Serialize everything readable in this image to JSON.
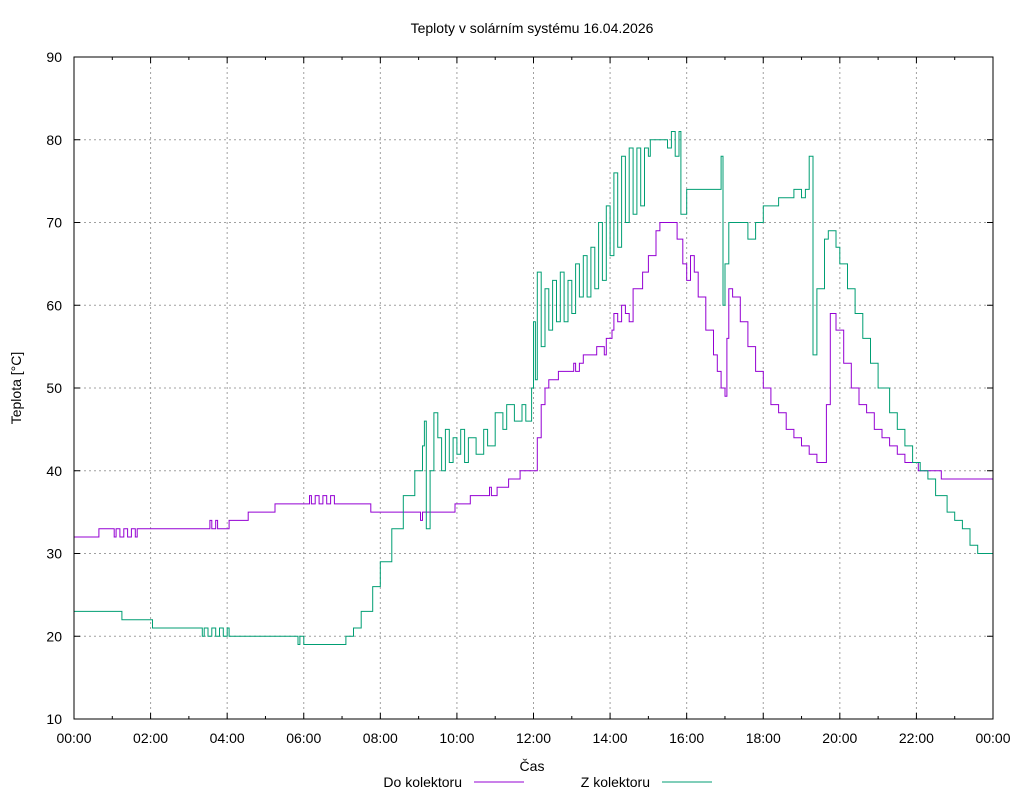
{
  "chart_data": {
    "type": "line",
    "title": "Teploty v solárním systému 16.04.2026",
    "xlabel": "Čas",
    "ylabel": "Teplota [°C]",
    "xlim": [
      0,
      24
    ],
    "ylim": [
      10,
      90
    ],
    "grid": true,
    "legend_position": "bottom",
    "x_tick_values": [
      0,
      2,
      4,
      6,
      8,
      10,
      12,
      14,
      16,
      18,
      20,
      22,
      24
    ],
    "x_tick_labels": [
      "00:00",
      "02:00",
      "04:00",
      "06:00",
      "08:00",
      "10:00",
      "12:00",
      "14:00",
      "16:00",
      "18:00",
      "20:00",
      "22:00",
      "00:00"
    ],
    "y_ticks": [
      10,
      20,
      30,
      40,
      50,
      60,
      70,
      80,
      90
    ],
    "series": [
      {
        "name": "Do kolektoru",
        "color": "#9400d3",
        "points": [
          [
            0,
            32
          ],
          [
            0.6,
            32
          ],
          [
            0.65,
            33
          ],
          [
            1.0,
            33
          ],
          [
            1.05,
            32
          ],
          [
            1.1,
            33
          ],
          [
            1.2,
            32
          ],
          [
            1.3,
            33
          ],
          [
            1.4,
            32
          ],
          [
            1.5,
            33
          ],
          [
            1.6,
            32
          ],
          [
            1.65,
            33
          ],
          [
            3.5,
            33
          ],
          [
            3.55,
            34
          ],
          [
            3.6,
            33
          ],
          [
            3.7,
            34
          ],
          [
            3.75,
            33
          ],
          [
            4.0,
            33
          ],
          [
            4.05,
            34
          ],
          [
            4.5,
            34
          ],
          [
            4.55,
            35
          ],
          [
            5.2,
            35
          ],
          [
            5.25,
            36
          ],
          [
            6.1,
            36
          ],
          [
            6.15,
            37
          ],
          [
            6.2,
            36
          ],
          [
            6.3,
            37
          ],
          [
            6.4,
            36
          ],
          [
            6.5,
            37
          ],
          [
            6.6,
            36
          ],
          [
            6.7,
            37
          ],
          [
            6.8,
            36
          ],
          [
            7.7,
            36
          ],
          [
            7.75,
            35
          ],
          [
            9.0,
            35
          ],
          [
            9.05,
            34
          ],
          [
            9.1,
            35
          ],
          [
            9.9,
            35
          ],
          [
            9.95,
            36
          ],
          [
            10.3,
            36
          ],
          [
            10.35,
            37
          ],
          [
            10.8,
            37
          ],
          [
            10.85,
            38
          ],
          [
            10.9,
            37
          ],
          [
            11.0,
            37
          ],
          [
            11.05,
            38
          ],
          [
            11.3,
            38
          ],
          [
            11.35,
            39
          ],
          [
            11.6,
            39
          ],
          [
            11.65,
            40
          ],
          [
            12.0,
            40
          ],
          [
            12.1,
            44
          ],
          [
            12.2,
            48
          ],
          [
            12.3,
            50
          ],
          [
            12.4,
            51
          ],
          [
            12.6,
            51
          ],
          [
            12.65,
            52
          ],
          [
            13.0,
            52
          ],
          [
            13.05,
            53
          ],
          [
            13.1,
            52
          ],
          [
            13.2,
            53
          ],
          [
            13.3,
            54
          ],
          [
            13.6,
            54
          ],
          [
            13.65,
            55
          ],
          [
            13.8,
            55
          ],
          [
            13.85,
            54
          ],
          [
            13.9,
            56
          ],
          [
            14.0,
            56
          ],
          [
            14.05,
            57
          ],
          [
            14.1,
            59
          ],
          [
            14.2,
            58
          ],
          [
            14.3,
            60
          ],
          [
            14.4,
            59
          ],
          [
            14.5,
            58
          ],
          [
            14.6,
            62
          ],
          [
            14.8,
            62
          ],
          [
            14.85,
            64
          ],
          [
            15.0,
            66
          ],
          [
            15.2,
            69
          ],
          [
            15.3,
            70
          ],
          [
            15.7,
            70
          ],
          [
            15.75,
            68
          ],
          [
            15.9,
            65
          ],
          [
            16.0,
            63
          ],
          [
            16.1,
            66
          ],
          [
            16.2,
            64
          ],
          [
            16.3,
            61
          ],
          [
            16.5,
            57
          ],
          [
            16.7,
            54
          ],
          [
            16.8,
            52
          ],
          [
            16.9,
            50
          ],
          [
            17.0,
            49
          ],
          [
            17.05,
            56
          ],
          [
            17.1,
            62
          ],
          [
            17.2,
            61
          ],
          [
            17.4,
            58
          ],
          [
            17.6,
            55
          ],
          [
            17.8,
            52
          ],
          [
            18.0,
            50
          ],
          [
            18.2,
            48
          ],
          [
            18.4,
            47
          ],
          [
            18.6,
            45
          ],
          [
            18.8,
            44
          ],
          [
            19.0,
            43
          ],
          [
            19.2,
            42
          ],
          [
            19.4,
            41
          ],
          [
            19.6,
            41
          ],
          [
            19.65,
            48
          ],
          [
            19.75,
            59
          ],
          [
            19.9,
            57
          ],
          [
            20.1,
            53
          ],
          [
            20.3,
            50
          ],
          [
            20.5,
            48
          ],
          [
            20.7,
            47
          ],
          [
            20.9,
            45
          ],
          [
            21.1,
            44
          ],
          [
            21.3,
            43
          ],
          [
            21.5,
            42
          ],
          [
            21.7,
            41
          ],
          [
            22.0,
            41
          ],
          [
            22.05,
            40
          ],
          [
            22.6,
            40
          ],
          [
            22.65,
            39
          ],
          [
            24.0,
            39
          ],
          [
            24.0,
            38
          ]
        ]
      },
      {
        "name": "Z kolektoru",
        "color": "#009e73",
        "points": [
          [
            0,
            23
          ],
          [
            1.2,
            23
          ],
          [
            1.25,
            22
          ],
          [
            2.0,
            22
          ],
          [
            2.05,
            21
          ],
          [
            3.3,
            21
          ],
          [
            3.35,
            20
          ],
          [
            3.4,
            21
          ],
          [
            3.5,
            20
          ],
          [
            3.6,
            21
          ],
          [
            3.7,
            20
          ],
          [
            3.8,
            21
          ],
          [
            3.9,
            20
          ],
          [
            4.0,
            21
          ],
          [
            4.05,
            20
          ],
          [
            5.8,
            20
          ],
          [
            5.85,
            19
          ],
          [
            5.9,
            20
          ],
          [
            6.0,
            19
          ],
          [
            7.0,
            19
          ],
          [
            7.1,
            20
          ],
          [
            7.3,
            21
          ],
          [
            7.5,
            23
          ],
          [
            7.8,
            26
          ],
          [
            8.0,
            29
          ],
          [
            8.3,
            33
          ],
          [
            8.6,
            37
          ],
          [
            8.9,
            40
          ],
          [
            9.1,
            43
          ],
          [
            9.15,
            46
          ],
          [
            9.2,
            33
          ],
          [
            9.3,
            40
          ],
          [
            9.4,
            47
          ],
          [
            9.5,
            44
          ],
          [
            9.6,
            40
          ],
          [
            9.7,
            45
          ],
          [
            9.8,
            41
          ],
          [
            9.9,
            44
          ],
          [
            10.0,
            42
          ],
          [
            10.1,
            45
          ],
          [
            10.2,
            41
          ],
          [
            10.3,
            44
          ],
          [
            10.5,
            42
          ],
          [
            10.7,
            45
          ],
          [
            10.8,
            43
          ],
          [
            11.0,
            47
          ],
          [
            11.2,
            45
          ],
          [
            11.3,
            48
          ],
          [
            11.5,
            46
          ],
          [
            11.7,
            48
          ],
          [
            11.8,
            46
          ],
          [
            11.95,
            50
          ],
          [
            12.0,
            58
          ],
          [
            12.05,
            51
          ],
          [
            12.1,
            64
          ],
          [
            12.2,
            55
          ],
          [
            12.3,
            62
          ],
          [
            12.4,
            57
          ],
          [
            12.5,
            63
          ],
          [
            12.6,
            58
          ],
          [
            12.7,
            64
          ],
          [
            12.8,
            58
          ],
          [
            12.9,
            63
          ],
          [
            13.0,
            59
          ],
          [
            13.1,
            65
          ],
          [
            13.2,
            61
          ],
          [
            13.3,
            66
          ],
          [
            13.4,
            61
          ],
          [
            13.5,
            67
          ],
          [
            13.6,
            62
          ],
          [
            13.7,
            70
          ],
          [
            13.8,
            63
          ],
          [
            13.9,
            72
          ],
          [
            14.0,
            66
          ],
          [
            14.1,
            76
          ],
          [
            14.2,
            67
          ],
          [
            14.3,
            78
          ],
          [
            14.4,
            70
          ],
          [
            14.5,
            79
          ],
          [
            14.6,
            71
          ],
          [
            14.7,
            79
          ],
          [
            14.8,
            72
          ],
          [
            14.9,
            79
          ],
          [
            15.0,
            78
          ],
          [
            15.05,
            80
          ],
          [
            15.4,
            80
          ],
          [
            15.5,
            79
          ],
          [
            15.6,
            81
          ],
          [
            15.7,
            78
          ],
          [
            15.8,
            81
          ],
          [
            15.85,
            71
          ],
          [
            16.0,
            74
          ],
          [
            16.8,
            74
          ],
          [
            16.9,
            78
          ],
          [
            16.95,
            60
          ],
          [
            17.0,
            65
          ],
          [
            17.1,
            70
          ],
          [
            17.5,
            70
          ],
          [
            17.6,
            68
          ],
          [
            17.8,
            70
          ],
          [
            18.0,
            72
          ],
          [
            18.3,
            72
          ],
          [
            18.4,
            73
          ],
          [
            18.8,
            74
          ],
          [
            19.0,
            73
          ],
          [
            19.1,
            74
          ],
          [
            19.2,
            78
          ],
          [
            19.3,
            54
          ],
          [
            19.4,
            62
          ],
          [
            19.6,
            68
          ],
          [
            19.7,
            69
          ],
          [
            19.9,
            67
          ],
          [
            20.0,
            65
          ],
          [
            20.2,
            62
          ],
          [
            20.4,
            59
          ],
          [
            20.6,
            56
          ],
          [
            20.8,
            53
          ],
          [
            21.0,
            50
          ],
          [
            21.3,
            47
          ],
          [
            21.5,
            45
          ],
          [
            21.7,
            43
          ],
          [
            21.9,
            41
          ],
          [
            22.1,
            40
          ],
          [
            22.3,
            39
          ],
          [
            22.5,
            37
          ],
          [
            22.8,
            35
          ],
          [
            23.0,
            34
          ],
          [
            23.2,
            33
          ],
          [
            23.4,
            31
          ],
          [
            23.6,
            30
          ],
          [
            23.9,
            30
          ],
          [
            24.0,
            29
          ]
        ]
      }
    ]
  }
}
